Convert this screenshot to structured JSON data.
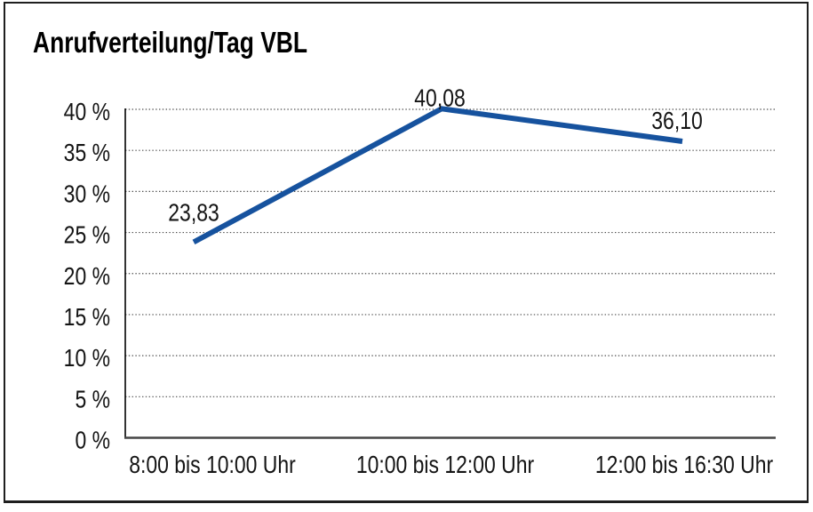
{
  "title": "Anrufverteilung/Tag VBL",
  "chart_data": {
    "type": "line",
    "title": "Anrufverteilung/Tag VBL",
    "categories": [
      "8:00 bis 10:00 Uhr",
      "10:00 bis 12:00 Uhr",
      "12:00 bis 16:30 Uhr"
    ],
    "values": [
      23.83,
      40.08,
      36.1
    ],
    "value_labels": [
      "23,83",
      "40,08",
      "36,10"
    ],
    "xlabel": "",
    "ylabel": "",
    "ylim": [
      0,
      40
    ],
    "y_tick_values": [
      0,
      5,
      10,
      15,
      20,
      25,
      30,
      35,
      40
    ],
    "y_tick_labels": [
      "0 %",
      "5 %",
      "10 %",
      "15 %",
      "20 %",
      "25 %",
      "30 %",
      "35 %",
      "40 %"
    ],
    "grid": "horizontal-dotted",
    "legend_position": "none"
  },
  "colors": {
    "line": "#16529E",
    "grid": "#4d4d4d",
    "y_axis": "#000000",
    "x_axis": "#454545",
    "text": "#141414",
    "background": "#ffffff",
    "border": "#1f1f1f"
  }
}
